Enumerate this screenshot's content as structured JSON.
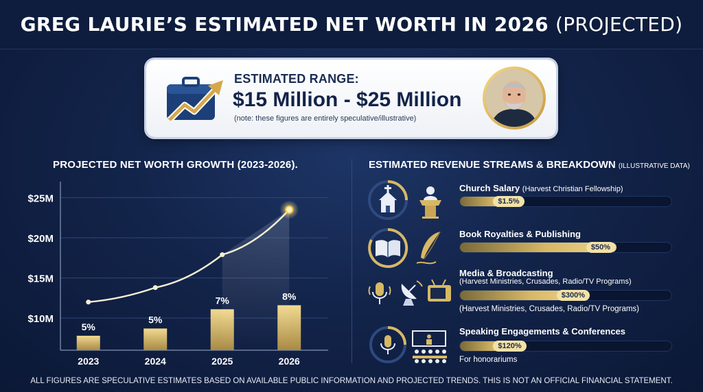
{
  "title": {
    "main": "GREG LAURIE’S ESTIMATED NET WORTH IN 2026",
    "suffix": "(PROJECTED)"
  },
  "range": {
    "label": "ESTIMATED RANGE:",
    "value": "$15 Million - $25 Million",
    "note": "(note: these figures are entirely speculative/illustrative)",
    "icon": "briefcase-growth-icon"
  },
  "growth_chart_title": "PROJECTED NET WORTH GROWTH (2023-2026).",
  "chart_data": {
    "type": "line",
    "title": "PROJECTED NET WORTH GROWTH (2023-2026).",
    "categories": [
      "2023",
      "2024",
      "2025",
      "2026"
    ],
    "y_ticks": [
      "$10M",
      "$15M",
      "$20M",
      "$25M"
    ],
    "ylim": [
      6,
      27
    ],
    "series": [
      {
        "type": "line",
        "values": [
          12,
          13.8,
          17.9,
          23.5
        ]
      },
      {
        "type": "bar",
        "values": [
          7.8,
          8.7,
          11.1,
          11.6
        ],
        "labels": [
          "5%",
          "5%",
          "7%",
          "8%"
        ]
      }
    ],
    "grid": true,
    "colors": {
      "line": "#f5eed4",
      "bar": "#d7b865",
      "grid": "#2f4677"
    }
  },
  "revenue": {
    "title": "ESTIMATED REVENUE STREAMS & BREAKDOWN",
    "title_sub": "(ILLUSTRATIVE DATA)",
    "items": [
      {
        "name": "Church Salary",
        "name_sub": "(Harvest Christian Fellowship)",
        "pill": "$1.5%",
        "fill": 0.3,
        "icons": [
          "church-icon",
          "pulpit-speaker-icon"
        ]
      },
      {
        "name": "Book Royalties & Publishing",
        "pill": "$50%",
        "fill": 0.74,
        "icons": [
          "open-book-icon",
          "quill-pen-icon"
        ]
      },
      {
        "name": "Media & Broadcasting",
        "detail_top": "(Harvest Ministries, Crusades, Radio/TV Programs)",
        "pill": "$300%",
        "fill": 0.6,
        "detail_bottom": "(Harvest Ministries, Crusades, Radio/TV Programs)",
        "icons": [
          "microphone-icon",
          "satellite-dish-icon",
          "tv-icon"
        ]
      },
      {
        "name": "Speaking Engagements & Conferences",
        "pill": "$120%",
        "fill": 0.3,
        "detail_bottom": "For honorariums",
        "icons": [
          "microphone-icon",
          "audience-icon"
        ]
      }
    ]
  },
  "footer": "ALL FIGURES ARE SPECULATIVE ESTIMATES BASED ON AVAILABLE PUBLIC INFORMATION AND PROJECTED TRENDS. THIS IS NOT AN OFFICIAL FINANCIAL STATEMENT."
}
